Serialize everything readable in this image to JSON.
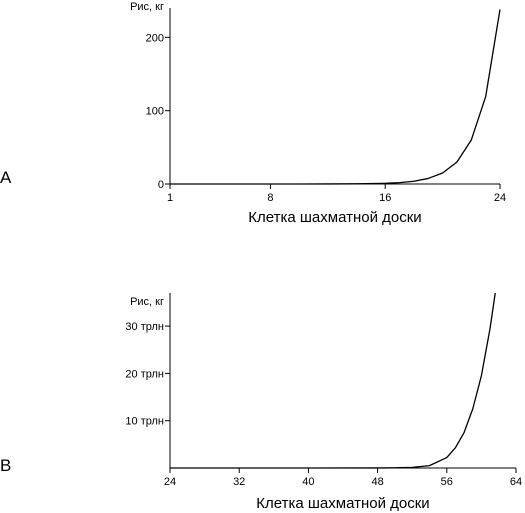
{
  "chart_data": [
    {
      "panel": "A",
      "type": "line",
      "ylabel": "Рис, кг",
      "xlabel": "Клетка шахматной доски",
      "xlim": [
        1,
        24
      ],
      "ylim": [
        0,
        240
      ],
      "xticks": [
        1,
        8,
        16,
        24
      ],
      "yticks": [
        {
          "value": 0,
          "label": "0"
        },
        {
          "value": 100,
          "label": "100"
        },
        {
          "value": 200,
          "label": "200"
        }
      ],
      "series": [
        {
          "x": [
            1,
            4,
            8,
            10,
            12,
            14,
            16,
            17,
            18,
            19,
            20,
            21,
            22,
            23,
            24
          ],
          "y": [
            0,
            0,
            0,
            0.01,
            0.06,
            0.25,
            0.96,
            1.9,
            3.8,
            7.6,
            15,
            30,
            60,
            119,
            238
          ]
        }
      ]
    },
    {
      "panel": "B",
      "type": "line",
      "ylabel": "Рис, кг",
      "xlabel": "Клетка шахматной доски",
      "xlim": [
        24,
        64
      ],
      "ylim": [
        0,
        37
      ],
      "xticks": [
        24,
        32,
        40,
        48,
        56,
        64
      ],
      "yticks": [
        {
          "value": 10,
          "label": "10 трлн"
        },
        {
          "value": 20,
          "label": "20 трлн"
        },
        {
          "value": 30,
          "label": "30 трлн"
        }
      ],
      "series": [
        {
          "x": [
            24,
            40,
            48,
            50,
            52,
            54,
            56,
            57,
            58,
            59,
            60,
            61,
            61.6
          ],
          "y": [
            0,
            0,
            0.01,
            0.04,
            0.14,
            0.5,
            2.2,
            4.3,
            7.5,
            12.5,
            19.5,
            29.5,
            37
          ]
        }
      ]
    }
  ],
  "panel_labels": [
    "A",
    "B"
  ]
}
